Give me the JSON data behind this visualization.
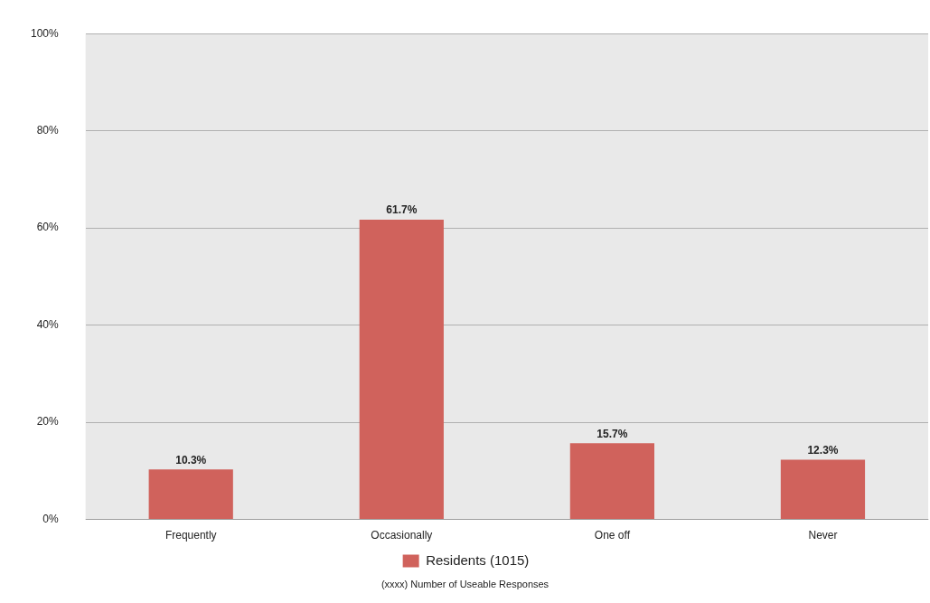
{
  "chart_data": {
    "type": "bar",
    "categories": [
      "Frequently",
      "Occasionally",
      "One off",
      "Never"
    ],
    "series": [
      {
        "name": "Residents (1015)",
        "color": "#d0625c",
        "values": [
          10.3,
          61.7,
          15.7,
          12.3
        ],
        "value_labels": [
          "10.3%",
          "61.7%",
          "15.7%",
          "12.3%"
        ]
      }
    ],
    "ylim": [
      0,
      100
    ],
    "yticks": [
      {
        "value": 0,
        "label": "0%"
      },
      {
        "value": 20,
        "label": "20%"
      },
      {
        "value": 40,
        "label": "40%"
      },
      {
        "value": 60,
        "label": "60%"
      },
      {
        "value": 80,
        "label": "80%"
      },
      {
        "value": 100,
        "label": "100%"
      }
    ],
    "grid": "y",
    "legend": "bottom",
    "annotations": [
      "(xxxx) Number of Useable Responses"
    ]
  }
}
